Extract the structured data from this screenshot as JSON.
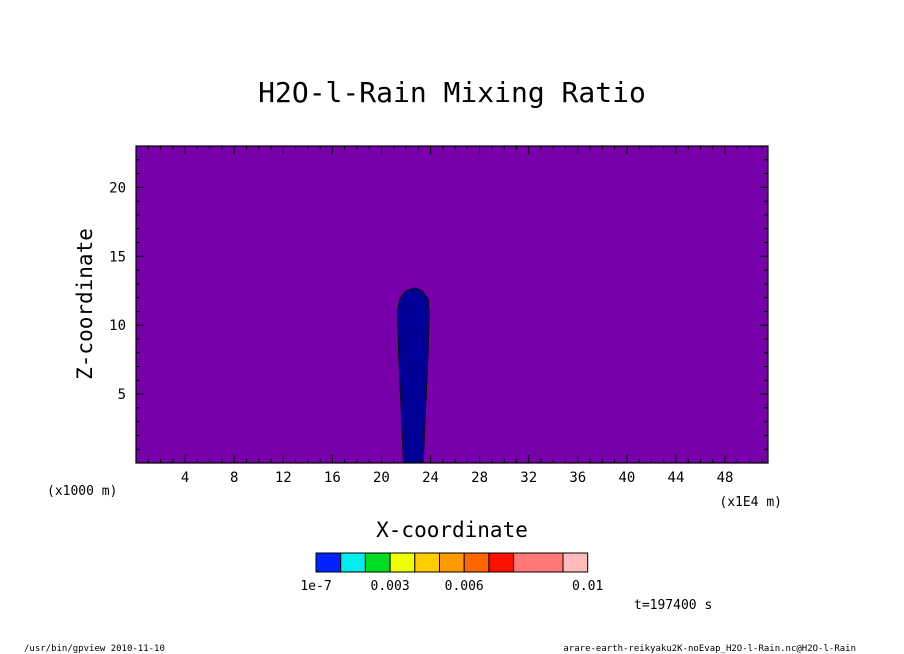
{
  "chart_data": {
    "type": "heatmap",
    "title": "H2O-l-Rain Mixing Ratio",
    "xlabel": "X-coordinate",
    "ylabel": "Z-coordinate",
    "x_unit": "(x1E4 m)",
    "y_unit": "(x1000 m)",
    "xlim": [
      0,
      51.5
    ],
    "ylim": [
      0,
      23
    ],
    "x_ticks": [
      4,
      8,
      12,
      16,
      20,
      24,
      28,
      32,
      36,
      40,
      44,
      48
    ],
    "y_ticks": [
      5,
      10,
      15,
      20
    ],
    "x_tick_labels": [
      "4",
      "8",
      "12",
      "16",
      "20",
      "24",
      "28",
      "32",
      "36",
      "40",
      "44",
      "48"
    ],
    "y_tick_labels": [
      "5",
      "10",
      "15",
      "20"
    ],
    "background_color": "#7700aa",
    "region": {
      "color": "#000099",
      "outline": [
        [
          21.8,
          0
        ],
        [
          21.6,
          4
        ],
        [
          21.4,
          8
        ],
        [
          21.3,
          11
        ],
        [
          21.5,
          11.9
        ],
        [
          22.0,
          12.5
        ],
        [
          22.7,
          12.7
        ],
        [
          23.3,
          12.5
        ],
        [
          23.8,
          11.9
        ],
        [
          23.9,
          11
        ],
        [
          23.8,
          8
        ],
        [
          23.6,
          4
        ],
        [
          23.4,
          0
        ]
      ]
    },
    "colorbar": {
      "colors": [
        "#0022ff",
        "#00eeee",
        "#00dd22",
        "#eeff00",
        "#ffcc00",
        "#ff9900",
        "#ff6600",
        "#ff1100",
        "#ff7777",
        "#ffbbbb"
      ],
      "widths": [
        1,
        1,
        1,
        1,
        1,
        1,
        1,
        1,
        2,
        1
      ],
      "tick_labels": [
        {
          "text": "1e-7",
          "pos": 0
        },
        {
          "text": "0.003",
          "pos": 3
        },
        {
          "text": "0.006",
          "pos": 6
        },
        {
          "text": "0.01",
          "pos": 10
        }
      ]
    },
    "time_label": "t=197400 s"
  },
  "footer": {
    "left": "/usr/bin/gpview  2010-11-10",
    "right": "arare-earth-reikyaku2K-noEvap_H2O-l-Rain.nc@H2O-l-Rain"
  }
}
